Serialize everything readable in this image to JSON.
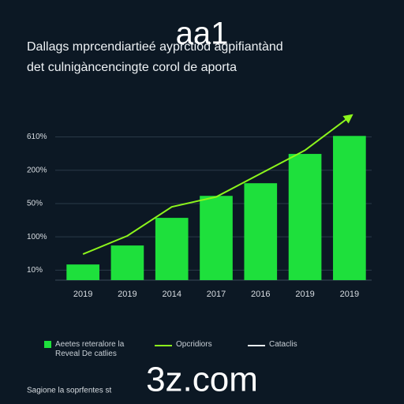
{
  "chart_data": {
    "type": "bar",
    "title": "Dallags mprcendiartieé ayprctiod agpifiantànd",
    "subtitle": "det culnigàncencingte corol de aporta",
    "categories": [
      "2019",
      "2019",
      "2014",
      "2017",
      "2016",
      "2019",
      "2019"
    ],
    "series": [
      {
        "name": "Aeetes reteralore la Reveal De catlies",
        "type": "bar",
        "color": "#1ee03c",
        "values": [
          0.47,
          1.04,
          1.87,
          2.53,
          2.91,
          3.79,
          4.33
        ]
      },
      {
        "name": "Opcridiors",
        "type": "line",
        "color": "#8cf51c",
        "values": [
          0.78,
          1.33,
          2.2,
          2.5,
          3.2,
          3.9,
          4.9
        ]
      },
      {
        "name": "Cataclis",
        "type": "line",
        "color": "#e8eef2",
        "values": [
          null,
          null,
          null,
          null,
          null,
          null,
          null
        ]
      }
    ],
    "ylim": [
      0,
      5
    ],
    "yticks": [
      {
        "value": 0.3,
        "label": "10%"
      },
      {
        "value": 1.3,
        "label": "100%"
      },
      {
        "value": 2.3,
        "label": "50%"
      },
      {
        "value": 3.3,
        "label": "200%"
      },
      {
        "value": 4.3,
        "label": "610%"
      }
    ],
    "grid": true,
    "footer": "Sagione la soprfentes st",
    "watermarks": [
      "aa1",
      "3z.com"
    ]
  }
}
